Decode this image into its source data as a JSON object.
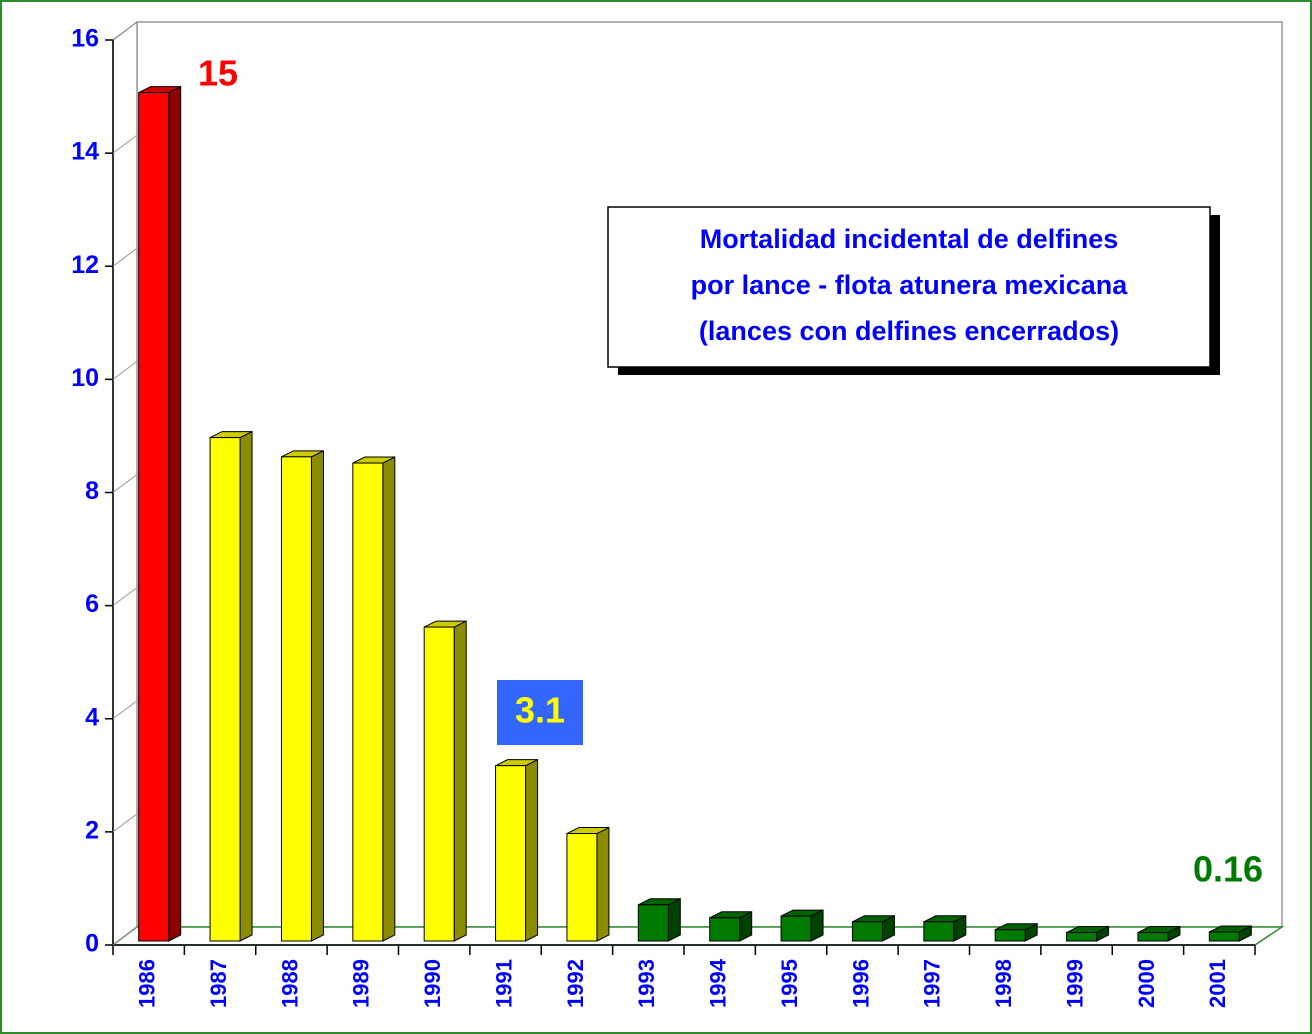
{
  "chart_data": {
    "type": "bar3d",
    "title": [
      "Mortalidad incidental de delfines",
      "por lance - flota atunera mexicana",
      "(lances con delfines encerrados)"
    ],
    "categories": [
      "1986",
      "1987",
      "1988",
      "1989",
      "1990",
      "1991",
      "1992",
      "1993",
      "1994",
      "1995",
      "1996",
      "1997",
      "1998",
      "1999",
      "2000",
      "2001"
    ],
    "values": [
      15,
      8.9,
      8.56,
      8.45,
      5.55,
      3.1,
      1.9,
      0.64,
      0.41,
      0.44,
      0.34,
      0.34,
      0.2,
      0.15,
      0.15,
      0.16
    ],
    "colors": [
      "#ff0000",
      "#ffff00",
      "#ffff00",
      "#ffff00",
      "#ffff00",
      "#ffff00",
      "#ffff00",
      "#007a00",
      "#007a00",
      "#007a00",
      "#007a00",
      "#007a00",
      "#007a00",
      "#007a00",
      "#007a00",
      "#007a00"
    ],
    "ylim": [
      0,
      16
    ],
    "yticks": [
      0,
      2,
      4,
      6,
      8,
      10,
      12,
      14,
      16
    ]
  }
}
